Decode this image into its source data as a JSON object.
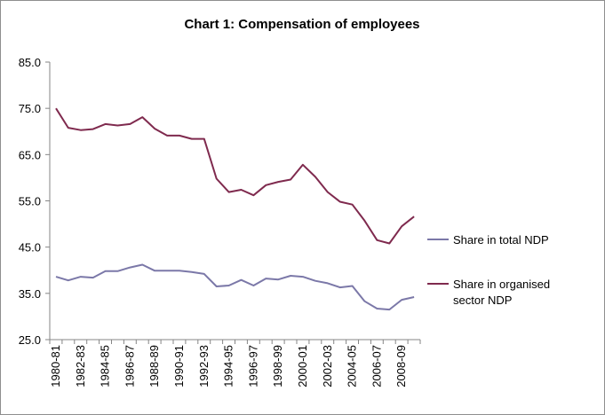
{
  "chart_data": {
    "type": "line",
    "title": "Chart 1: Compensation of employees",
    "xlabel": "",
    "ylabel": "",
    "ylim": [
      25,
      85
    ],
    "yticks": [
      "25.0",
      "35.0",
      "45.0",
      "55.0",
      "65.0",
      "75.0",
      "85.0"
    ],
    "grid": false,
    "legend_position": "right",
    "x": [
      "1980-81",
      "1981-82",
      "1982-83",
      "1983-84",
      "1984-85",
      "1985-86",
      "1986-87",
      "1987-88",
      "1988-89",
      "1989-90",
      "1990-91",
      "1991-92",
      "1992-93",
      "1993-94",
      "1994-95",
      "1995-96",
      "1996-97",
      "1997-98",
      "1998-99",
      "1999-00",
      "2000-01",
      "2001-02",
      "2002-03",
      "2003-04",
      "2004-05",
      "2005-06",
      "2006-07",
      "2007-08",
      "2008-09",
      "2009-10"
    ],
    "xtick_labels": [
      "1980-81",
      "1982-83",
      "1984-85",
      "1986-87",
      "1988-89",
      "1990-91",
      "1992-93",
      "1994-95",
      "1996-97",
      "1998-99",
      "2000-01",
      "2002-03",
      "2004-05",
      "2006-07",
      "2008-09"
    ],
    "series": [
      {
        "name": "Share in total NDP",
        "color": "#7b78a8",
        "values": [
          38.6,
          37.8,
          38.6,
          38.4,
          39.8,
          39.8,
          40.6,
          41.2,
          39.9,
          39.9,
          39.9,
          39.6,
          39.2,
          36.5,
          36.7,
          37.9,
          36.7,
          38.2,
          38.0,
          38.8,
          38.6,
          37.7,
          37.2,
          36.3,
          36.6,
          33.3,
          31.7,
          31.5,
          33.6,
          34.2
        ]
      },
      {
        "name": "Share in organised sector NDP",
        "legend_lines": [
          "Share in organised",
          "sector NDP"
        ],
        "color": "#7f2a4e",
        "values": [
          75.0,
          70.8,
          70.3,
          70.5,
          71.6,
          71.3,
          71.6,
          73.1,
          70.6,
          69.1,
          69.1,
          68.4,
          68.4,
          59.8,
          56.9,
          57.4,
          56.2,
          58.4,
          59.1,
          59.6,
          62.8,
          60.2,
          56.9,
          54.8,
          54.2,
          50.7,
          46.5,
          45.8,
          49.5,
          51.6
        ]
      }
    ]
  }
}
